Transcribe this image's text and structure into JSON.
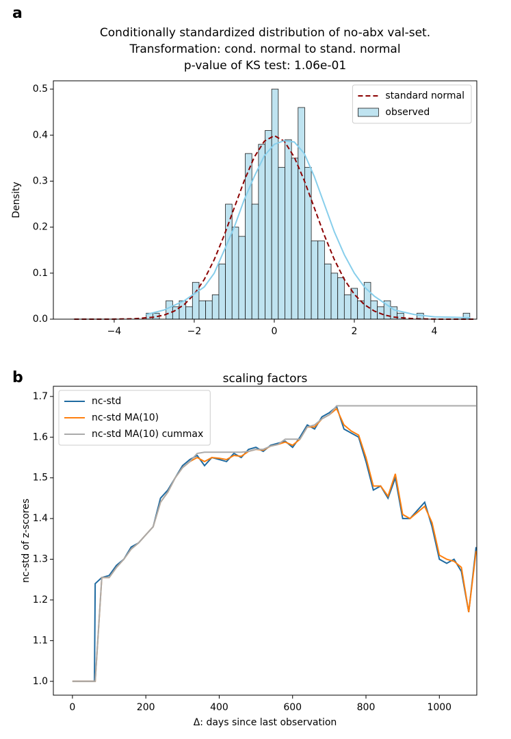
{
  "chart_data": [
    {
      "type": "histogram",
      "panel_label": "a",
      "title": [
        "Conditionally standardized distribution of no-abx val-set.",
        "Transformation: cond. normal to stand. normal",
        "p-value of KS test: 1.06e-01"
      ],
      "ylabel": "Density",
      "name": "observed",
      "color": "#bfe3f0",
      "edgecolor": "#1a1a1a",
      "bins": [
        -3.2,
        -3.035,
        -2.87,
        -2.705,
        -2.54,
        -2.375,
        -2.21,
        -2.045,
        -1.88,
        -1.715,
        -1.55,
        -1.385,
        -1.22,
        -1.055,
        -0.89,
        -0.725,
        -0.56,
        -0.395,
        -0.23,
        -0.065,
        0.1,
        0.265,
        0.43,
        0.595,
        0.76,
        0.925,
        1.09,
        1.255,
        1.42,
        1.585,
        1.75,
        1.915,
        2.08,
        2.245,
        2.41,
        2.575,
        2.74,
        2.905,
        3.07,
        3.235,
        3.4,
        3.565,
        3.73,
        3.895,
        4.06,
        4.225,
        4.39,
        4.555,
        4.72,
        4.885
      ],
      "counts": [
        0.013,
        0.013,
        0,
        0.04,
        0.027,
        0.04,
        0.027,
        0.08,
        0.04,
        0.04,
        0.053,
        0.12,
        0.25,
        0.2,
        0.18,
        0.36,
        0.25,
        0.38,
        0.41,
        0.5,
        0.33,
        0.39,
        0.35,
        0.46,
        0.33,
        0.17,
        0.17,
        0.12,
        0.1,
        0.09,
        0.053,
        0.067,
        0.04,
        0.08,
        0.04,
        0.027,
        0.04,
        0.027,
        0.013,
        0,
        0,
        0.013,
        0,
        0,
        0,
        0,
        0,
        0,
        0.013
      ],
      "series": [
        {
          "name": "standard normal",
          "color": "#8b0000",
          "dashed": true,
          "x": [
            -5,
            -4.5,
            -4,
            -3.5,
            -3,
            -2.75,
            -2.5,
            -2.25,
            -2,
            -1.75,
            -1.5,
            -1.25,
            -1,
            -0.75,
            -0.5,
            -0.25,
            0,
            0.25,
            0.5,
            0.75,
            1,
            1.25,
            1.5,
            1.75,
            2,
            2.25,
            2.5,
            2.75,
            3,
            3.5,
            4,
            4.5,
            5
          ],
          "values": [
            0,
            0,
            0.0001,
            0.0009,
            0.0044,
            0.0091,
            0.0175,
            0.0317,
            0.054,
            0.0863,
            0.1295,
            0.1826,
            0.242,
            0.3011,
            0.3521,
            0.3867,
            0.3989,
            0.3867,
            0.3521,
            0.3011,
            0.242,
            0.1826,
            0.1295,
            0.0863,
            0.054,
            0.0317,
            0.0175,
            0.0091,
            0.0044,
            0.0009,
            0.0001,
            0,
            0
          ]
        },
        {
          "color": "#87ceeb",
          "dashed": false,
          "x": [
            -3.2,
            -2.75,
            -2.25,
            -1.75,
            -1.5,
            -1.25,
            -1,
            -0.75,
            -0.5,
            -0.25,
            0,
            0.25,
            0.5,
            0.75,
            1,
            1.25,
            1.5,
            1.75,
            2,
            2.25,
            2.5,
            2.75,
            3,
            3.5,
            4,
            4.5,
            4.9
          ],
          "values": [
            0.01,
            0.02,
            0.04,
            0.07,
            0.1,
            0.15,
            0.2,
            0.26,
            0.31,
            0.355,
            0.38,
            0.388,
            0.385,
            0.36,
            0.31,
            0.25,
            0.19,
            0.14,
            0.1,
            0.07,
            0.05,
            0.035,
            0.02,
            0.01,
            0.005,
            0.004,
            0.003
          ]
        }
      ],
      "xlim": [
        -5.52,
        5.06
      ],
      "ylim": [
        0,
        0.518
      ],
      "xticks": [
        {
          "value": -4,
          "label": "−4"
        },
        {
          "value": -2,
          "label": "−2"
        },
        0,
        2,
        4
      ],
      "yticks": [
        {
          "value": 0,
          "label": "0.0"
        },
        0.1,
        0.2,
        0.3,
        0.4,
        0.5
      ],
      "legend": "upper right"
    },
    {
      "type": "line",
      "panel_label": "b",
      "title": [
        "scaling factors"
      ],
      "xlabel": "Δ: days since last observation",
      "ylabel": "nc-std of z-scores",
      "x": [
        0,
        20,
        40,
        60,
        62,
        80,
        100,
        120,
        140,
        160,
        180,
        200,
        220,
        240,
        260,
        280,
        300,
        320,
        340,
        360,
        380,
        400,
        420,
        440,
        460,
        480,
        500,
        520,
        540,
        560,
        580,
        600,
        620,
        640,
        660,
        680,
        700,
        720,
        740,
        760,
        780,
        800,
        820,
        840,
        860,
        880,
        900,
        920,
        940,
        960,
        980,
        1000,
        1020,
        1040,
        1060,
        1080,
        1100
      ],
      "series": [
        {
          "name": "nc-std",
          "color": "#1f6aa0",
          "values": [
            1,
            1,
            1,
            1,
            1.24,
            1.255,
            1.26,
            1.285,
            1.3,
            1.33,
            1.34,
            1.36,
            1.38,
            1.45,
            1.47,
            1.5,
            1.53,
            1.545,
            1.555,
            1.53,
            1.55,
            1.545,
            1.54,
            1.56,
            1.55,
            1.57,
            1.575,
            1.565,
            1.58,
            1.585,
            1.59,
            1.575,
            1.6,
            1.63,
            1.62,
            1.65,
            1.66,
            1.675,
            1.62,
            1.61,
            1.6,
            1.54,
            1.47,
            1.48,
            1.45,
            1.5,
            1.4,
            1.4,
            1.42,
            1.44,
            1.38,
            1.3,
            1.29,
            1.3,
            1.27,
            1.17,
            1.33
          ]
        },
        {
          "name": "nc-std MA(10)",
          "color": "#ff7f0e",
          "values": [
            1,
            1,
            1,
            1,
            1,
            1.255,
            1.255,
            1.28,
            1.3,
            1.325,
            1.34,
            1.36,
            1.38,
            1.44,
            1.465,
            1.5,
            1.525,
            1.54,
            1.55,
            1.54,
            1.55,
            1.548,
            1.545,
            1.555,
            1.553,
            1.565,
            1.57,
            1.568,
            1.578,
            1.582,
            1.588,
            1.58,
            1.595,
            1.625,
            1.625,
            1.645,
            1.655,
            1.67,
            1.63,
            1.615,
            1.605,
            1.55,
            1.48,
            1.48,
            1.455,
            1.51,
            1.41,
            1.4,
            1.415,
            1.43,
            1.39,
            1.31,
            1.3,
            1.295,
            1.28,
            1.17,
            1.32
          ]
        },
        {
          "name": "nc-std MA(10) cummax",
          "color": "#aaaaaa",
          "values": [
            1,
            1,
            1,
            1,
            1,
            1.255,
            1.255,
            1.28,
            1.3,
            1.325,
            1.34,
            1.36,
            1.38,
            1.44,
            1.465,
            1.5,
            1.525,
            1.54,
            1.56,
            1.563,
            1.563,
            1.563,
            1.563,
            1.563,
            1.563,
            1.565,
            1.57,
            1.57,
            1.578,
            1.582,
            1.595,
            1.595,
            1.595,
            1.625,
            1.63,
            1.645,
            1.655,
            1.677,
            1.677,
            1.677,
            1.677,
            1.677,
            1.677,
            1.677,
            1.677,
            1.677,
            1.677,
            1.677,
            1.677,
            1.677,
            1.677,
            1.677,
            1.677,
            1.677,
            1.677,
            1.677,
            1.677
          ]
        }
      ],
      "xlim": [
        -52,
        1102
      ],
      "ylim": [
        0.966,
        1.725
      ],
      "xticks": [
        0,
        200,
        400,
        600,
        800,
        1000
      ],
      "yticks": [
        {
          "value": 1,
          "label": "1.0"
        },
        1.1,
        1.2,
        1.3,
        1.4,
        1.5,
        1.6,
        1.7
      ],
      "legend": "upper left"
    }
  ]
}
